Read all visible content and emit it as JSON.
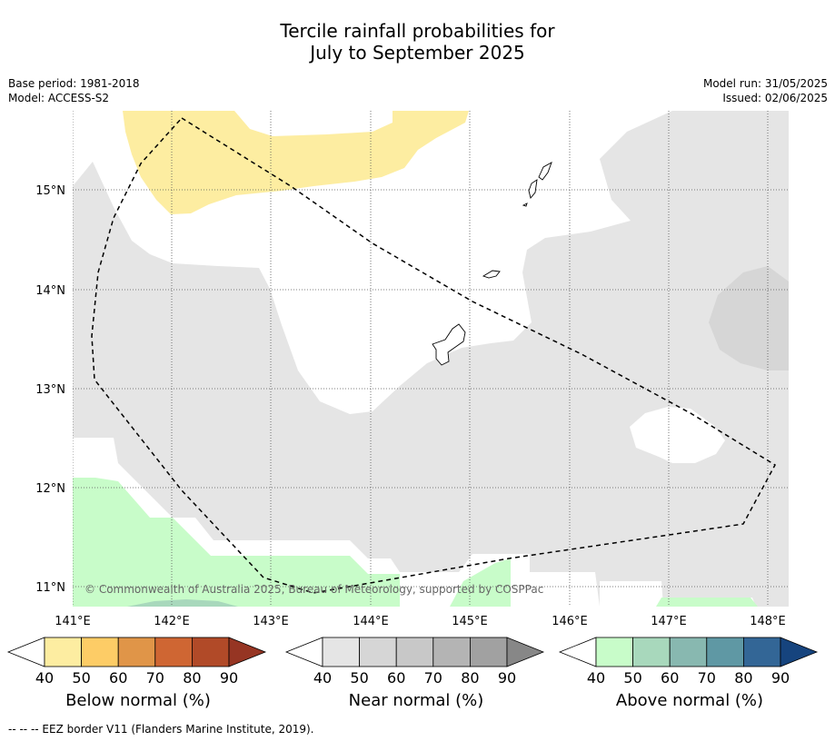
{
  "title_line1": "Tercile rainfall probabilities for",
  "title_line2": "July to September 2025",
  "meta_left": {
    "base_period": "Base period: 1981-2018",
    "model": "Model: ACCESS-S2"
  },
  "meta_right": {
    "model_run": "Model run: 31/05/2025",
    "issued": "Issued: 02/06/2025"
  },
  "map": {
    "lat_labels": [
      "15°N",
      "14°N",
      "13°N",
      "12°N",
      "11°N"
    ],
    "lon_labels": [
      "141°E",
      "142°E",
      "143°E",
      "144°E",
      "145°E",
      "146°E",
      "147°E",
      "148°E"
    ],
    "copyright": "© Commonwealth of Australia 2025, Bureau of Meteorology, supported by COSPPac",
    "colors": {
      "below_50": "#fdeda1",
      "near_40": "#e5e5e5",
      "near_50": "#d6d6d6",
      "above_40": "#c8fcc9",
      "above_50": "#a8d8bc",
      "coast": "#000000",
      "eez": "#000000"
    }
  },
  "legends": [
    {
      "id": "below",
      "label": "Below normal (%)",
      "ticks": [
        "40",
        "50",
        "60",
        "70",
        "80",
        "90"
      ],
      "colors": [
        "#ffffff",
        "#fdeda1",
        "#fdcc66",
        "#e09548",
        "#cf6633",
        "#b14a28",
        "#963523"
      ]
    },
    {
      "id": "near",
      "label": "Near normal (%)",
      "ticks": [
        "40",
        "50",
        "60",
        "70",
        "80",
        "90"
      ],
      "colors": [
        "#ffffff",
        "#e5e5e5",
        "#d6d6d6",
        "#c8c8c8",
        "#b4b4b4",
        "#a1a1a1",
        "#878787"
      ]
    },
    {
      "id": "above",
      "label": "Above normal (%)",
      "ticks": [
        "40",
        "50",
        "60",
        "70",
        "80",
        "90"
      ],
      "colors": [
        "#ffffff",
        "#c8fcc9",
        "#a8d8bc",
        "#88b8b0",
        "#5f98a4",
        "#336696",
        "#16447e"
      ]
    }
  ],
  "footer": "--  --  -- EEZ border V11 (Flanders Marine Institute, 2019)."
}
